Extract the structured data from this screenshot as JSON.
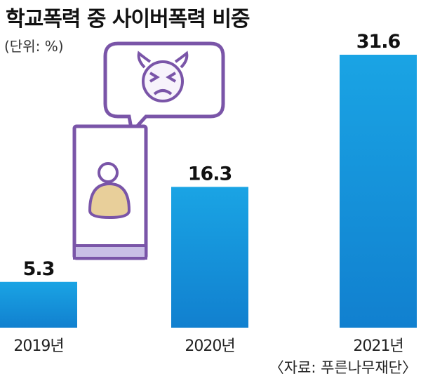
{
  "title": "학교폭력 중 사이버폭력 비중",
  "unit_label": "(단위: %)",
  "source": "〈자료: 푸른나무재단〉",
  "colors": {
    "bar_top": "#1aa4e4",
    "bar_bottom": "#1180cf",
    "illustration_stroke": "#7a55a8",
    "illustration_fill": "#ffffff",
    "phone_bottom": "#c9bfe6",
    "face_fill": "#f7f3fb",
    "avatar_body": "#e8cf9a"
  },
  "icons": [
    "angry-devil-face-icon",
    "person-avatar-icon",
    "smartphone-icon",
    "speech-bubble-icon"
  ],
  "chart_data": {
    "type": "bar",
    "title": "학교폭력 중 사이버폭력 비중",
    "categories": [
      "2019년",
      "2020년",
      "2021년"
    ],
    "values": [
      5.3,
      16.3,
      31.6
    ],
    "value_labels": [
      "5.3",
      "16.3",
      "31.6"
    ],
    "unit": "%",
    "ylim": [
      0,
      31.6
    ],
    "grid": false,
    "legend": "none"
  }
}
